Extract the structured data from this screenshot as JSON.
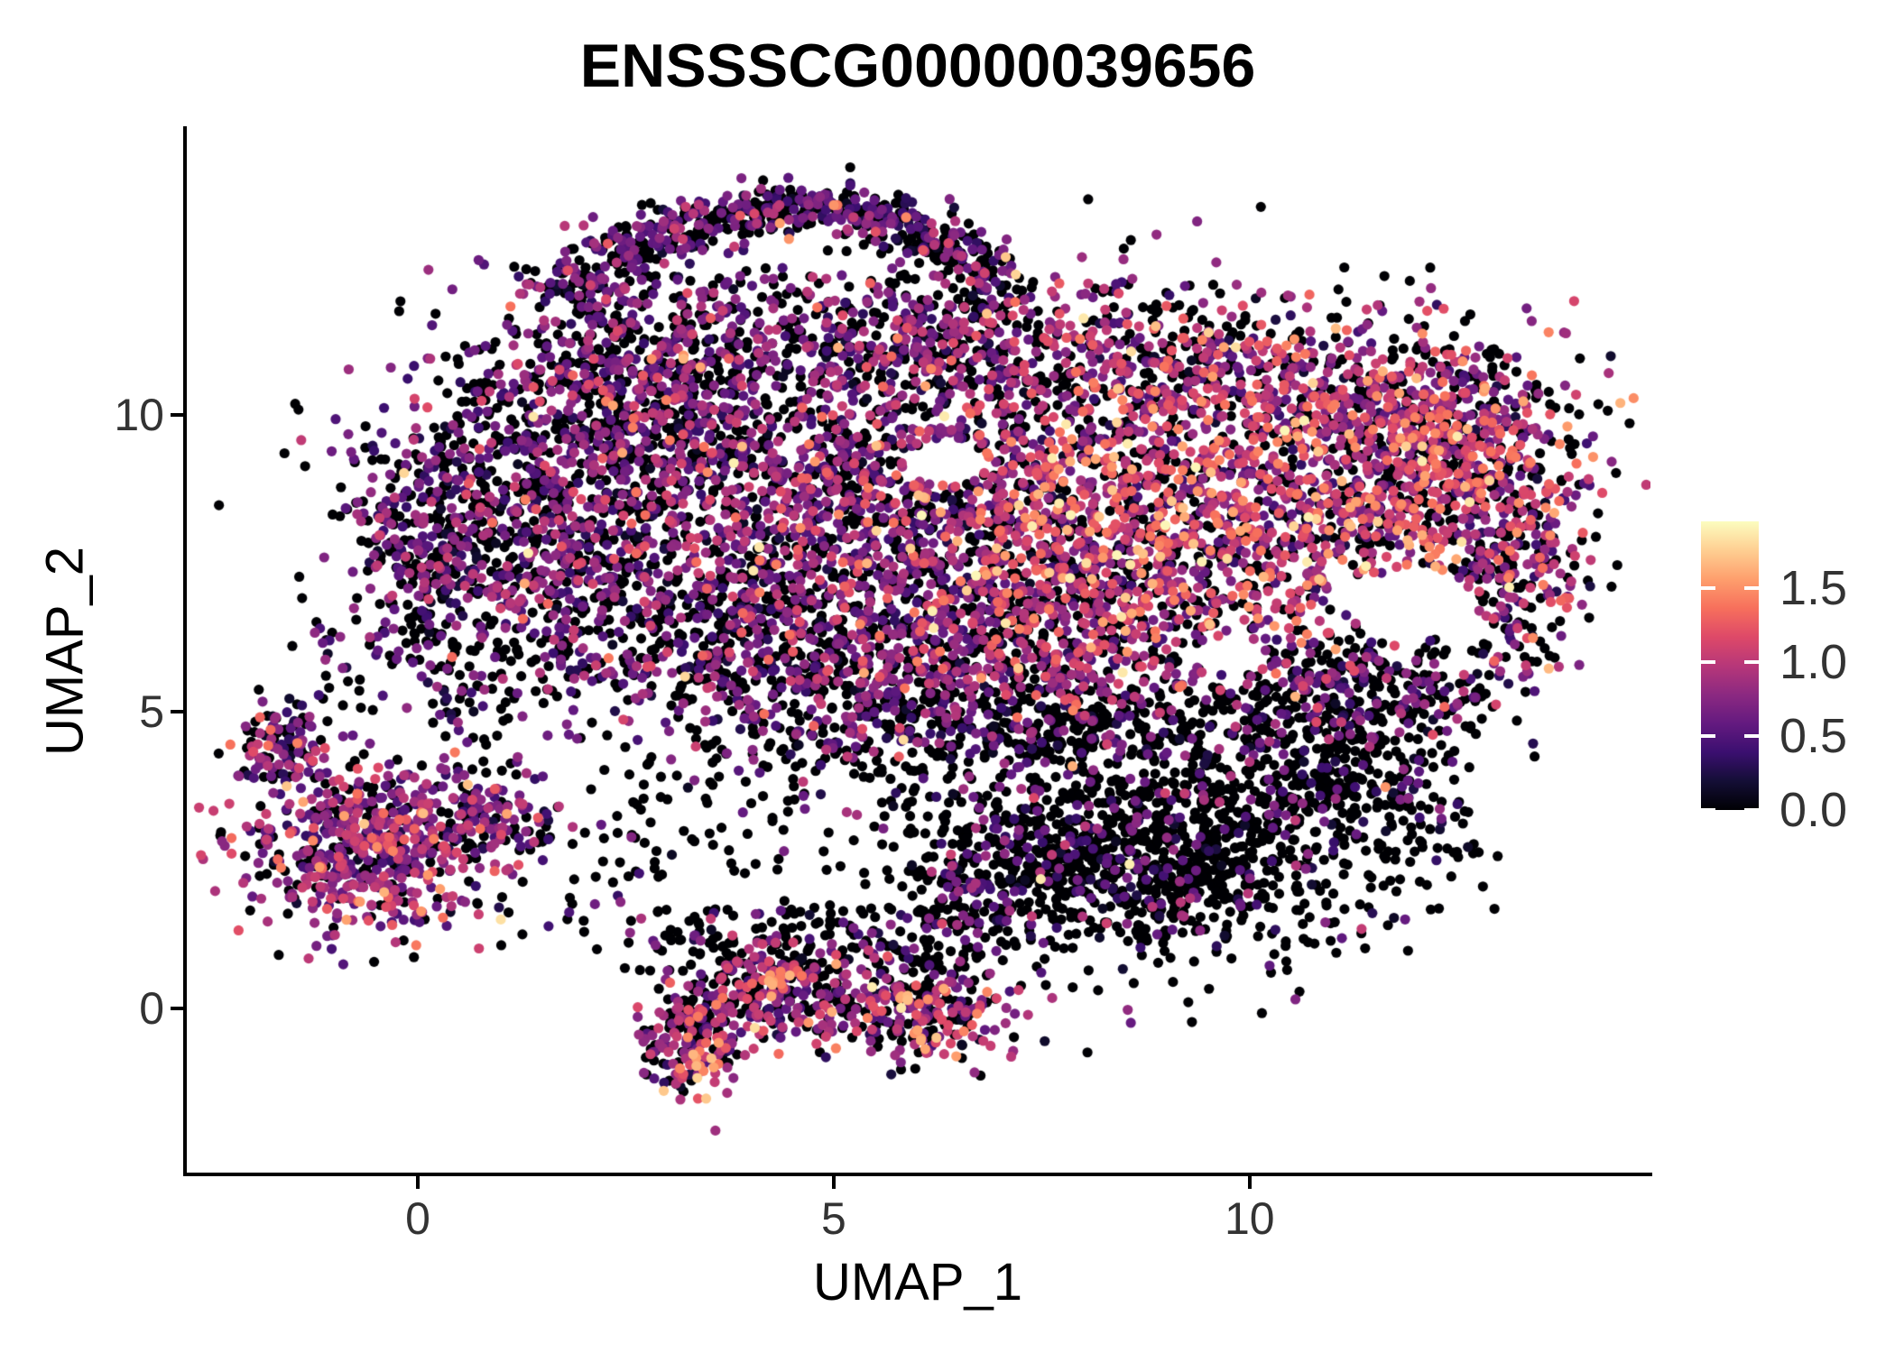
{
  "title": "ENSSSCG00000039656",
  "axes": {
    "x_label": "UMAP_1",
    "y_label": "UMAP_2",
    "x_ticks": [
      0,
      5,
      10
    ],
    "y_ticks": [
      0,
      5,
      10
    ],
    "x_range": [
      -2.8,
      14.82
    ],
    "y_range": [
      -2.8,
      14.83
    ]
  },
  "colorbar": {
    "tick_labels": [
      "1.5",
      "1.0",
      "0.5",
      "0.0"
    ],
    "tick_values": [
      1.5,
      1.0,
      0.5,
      0.0
    ],
    "min_value": 0.0,
    "max_value": 1.95,
    "colormap": "magma",
    "colormap_anchors": [
      [
        0.0,
        "#000004"
      ],
      [
        0.1,
        "#140e36"
      ],
      [
        0.2,
        "#3b0f70"
      ],
      [
        0.3,
        "#641a80"
      ],
      [
        0.4,
        "#8c2981"
      ],
      [
        0.5,
        "#b73779"
      ],
      [
        0.6,
        "#de4968"
      ],
      [
        0.7,
        "#f7705c"
      ],
      [
        0.8,
        "#fe9f6d"
      ],
      [
        0.9,
        "#fecf92"
      ],
      [
        1.0,
        "#fcfdbf"
      ]
    ]
  },
  "chart_data": {
    "type": "scatter",
    "title": "ENSSSCG00000039656",
    "xlabel": "UMAP_1",
    "ylabel": "UMAP_2",
    "xlim": [
      -2.8,
      14.82
    ],
    "ylim": [
      -2.8,
      14.83
    ],
    "grid": false,
    "legend_position": "right",
    "point_radius_px": 5.6,
    "zero_color": "#000004",
    "color_scale": {
      "name": "magma",
      "domain": [
        0,
        1.95
      ]
    },
    "n_points_approx": 12900,
    "seed": 20240507,
    "holes": [
      {
        "cx": 6.35,
        "cy": 9.2,
        "rx": 0.5,
        "ry": 0.38
      },
      {
        "cx": 11.95,
        "cy": 6.8,
        "rx": 0.78,
        "ry": 0.58
      },
      {
        "cx": 9.75,
        "cy": 5.95,
        "rx": 0.45,
        "ry": 0.33
      }
    ],
    "clusters": [
      {
        "name": "crescent-1",
        "n": 70,
        "cx": 1.85,
        "cy": 12.2,
        "sx": 0.28,
        "sy": 0.22,
        "zero_frac": 0.48,
        "v_mean": 0.62,
        "v_sd": 0.26,
        "hi_frac": 0.01
      },
      {
        "name": "crescent-2",
        "n": 85,
        "cx": 2.5,
        "cy": 12.75,
        "sx": 0.3,
        "sy": 0.22,
        "zero_frac": 0.48,
        "v_mean": 0.62,
        "v_sd": 0.26,
        "hi_frac": 0.01
      },
      {
        "name": "crescent-3",
        "n": 95,
        "cx": 3.2,
        "cy": 13.15,
        "sx": 0.3,
        "sy": 0.2,
        "zero_frac": 0.48,
        "v_mean": 0.62,
        "v_sd": 0.26,
        "hi_frac": 0.01
      },
      {
        "name": "crescent-4",
        "n": 100,
        "cx": 4.05,
        "cy": 13.45,
        "sx": 0.32,
        "sy": 0.2,
        "zero_frac": 0.48,
        "v_mean": 0.62,
        "v_sd": 0.26,
        "hi_frac": 0.01
      },
      {
        "name": "crescent-5",
        "n": 95,
        "cx": 4.9,
        "cy": 13.5,
        "sx": 0.32,
        "sy": 0.2,
        "zero_frac": 0.48,
        "v_mean": 0.62,
        "v_sd": 0.26,
        "hi_frac": 0.01
      },
      {
        "name": "crescent-6",
        "n": 90,
        "cx": 5.65,
        "cy": 13.25,
        "sx": 0.3,
        "sy": 0.2,
        "zero_frac": 0.48,
        "v_mean": 0.62,
        "v_sd": 0.26,
        "hi_frac": 0.01
      },
      {
        "name": "crescent-7",
        "n": 80,
        "cx": 6.35,
        "cy": 12.85,
        "sx": 0.28,
        "sy": 0.2,
        "zero_frac": 0.48,
        "v_mean": 0.62,
        "v_sd": 0.26,
        "hi_frac": 0.01
      },
      {
        "name": "crescent-8",
        "n": 55,
        "cx": 6.85,
        "cy": 12.35,
        "sx": 0.22,
        "sy": 0.25,
        "zero_frac": 0.48,
        "v_mean": 0.62,
        "v_sd": 0.26,
        "hi_frac": 0.01
      },
      {
        "name": "sub-crescent-sparse",
        "shape": "uniform",
        "n": 170,
        "x0": 1.9,
        "x1": 7.1,
        "y0": 10.9,
        "y1": 12.35,
        "zero_frac": 0.55,
        "v_mean": 0.6,
        "v_sd": 0.25,
        "hi_frac": 0.01
      },
      {
        "name": "main-upper-left",
        "n": 500,
        "cx": 2.6,
        "cy": 10.6,
        "sx": 1.0,
        "sy": 0.8,
        "zero_frac": 0.45,
        "v_mean": 0.68,
        "v_sd": 0.28,
        "hi_frac": 0.015
      },
      {
        "name": "main-left-lobe",
        "n": 900,
        "cx": 1.35,
        "cy": 8.3,
        "sx": 1.05,
        "sy": 1.35,
        "zero_frac": 0.46,
        "v_mean": 0.66,
        "v_sd": 0.28,
        "hi_frac": 0.01
      },
      {
        "name": "main-left-spur",
        "n": 210,
        "cx": 0.05,
        "cy": 7.5,
        "sx": 0.42,
        "sy": 0.95,
        "zero_frac": 0.5,
        "v_mean": 0.6,
        "v_sd": 0.25,
        "hi_frac": 0.01
      },
      {
        "name": "main-center",
        "n": 1300,
        "cx": 4.8,
        "cy": 8.7,
        "sx": 1.5,
        "sy": 1.4,
        "zero_frac": 0.44,
        "v_mean": 0.7,
        "v_sd": 0.3,
        "hi_frac": 0.02
      },
      {
        "name": "main-center-low",
        "n": 550,
        "cx": 4.0,
        "cy": 6.15,
        "sx": 1.3,
        "sy": 0.85,
        "zero_frac": 0.5,
        "v_mean": 0.65,
        "v_sd": 0.28,
        "hi_frac": 0.01
      },
      {
        "name": "main-top-band",
        "n": 560,
        "cx": 6.8,
        "cy": 11.15,
        "sx": 1.7,
        "sy": 0.72,
        "zero_frac": 0.44,
        "v_mean": 0.7,
        "v_sd": 0.3,
        "hi_frac": 0.02
      },
      {
        "name": "main-right-bright",
        "n": 1500,
        "cx": 8.6,
        "cy": 8.1,
        "sx": 1.65,
        "sy": 1.35,
        "zero_frac": 0.3,
        "v_mean": 0.95,
        "v_sd": 0.35,
        "hi_frac": 0.04
      },
      {
        "name": "main-upper-right",
        "n": 420,
        "cx": 10.2,
        "cy": 10.55,
        "sx": 1.15,
        "sy": 0.65,
        "zero_frac": 0.36,
        "v_mean": 0.85,
        "v_sd": 0.33,
        "hi_frac": 0.03
      },
      {
        "name": "main-upper-right-tip",
        "n": 300,
        "cx": 12.35,
        "cy": 10.1,
        "sx": 0.72,
        "sy": 0.62,
        "zero_frac": 0.34,
        "v_mean": 0.9,
        "v_sd": 0.33,
        "hi_frac": 0.03
      },
      {
        "name": "main-far-right",
        "n": 650,
        "cx": 11.7,
        "cy": 8.75,
        "sx": 1.05,
        "sy": 0.95,
        "zero_frac": 0.3,
        "v_mean": 0.95,
        "v_sd": 0.35,
        "hi_frac": 0.04
      },
      {
        "name": "main-right-edge",
        "n": 280,
        "cx": 13.15,
        "cy": 7.6,
        "sx": 0.45,
        "sy": 1.15,
        "zero_frac": 0.42,
        "v_mean": 0.8,
        "v_sd": 0.33,
        "hi_frac": 0.02
      },
      {
        "name": "main-right-low-edge",
        "n": 290,
        "cx": 11.3,
        "cy": 5.4,
        "sx": 1.05,
        "sy": 0.5,
        "zero_frac": 0.62,
        "v_mean": 0.7,
        "v_sd": 0.3,
        "hi_frac": 0.01
      },
      {
        "name": "main-center-right-low",
        "n": 520,
        "cx": 7.1,
        "cy": 6.2,
        "sx": 1.2,
        "sy": 0.8,
        "zero_frac": 0.42,
        "v_mean": 0.8,
        "v_sd": 0.3,
        "hi_frac": 0.02
      },
      {
        "name": "main-low-tail",
        "n": 220,
        "cx": 5.9,
        "cy": 4.9,
        "sx": 1.1,
        "sy": 0.5,
        "zero_frac": 0.58,
        "v_mean": 0.65,
        "v_sd": 0.28,
        "hi_frac": 0.01
      },
      {
        "name": "left-cluster-core",
        "n": 620,
        "cx": -0.55,
        "cy": 2.7,
        "sx": 0.8,
        "sy": 0.75,
        "zero_frac": 0.28,
        "v_mean": 0.82,
        "v_sd": 0.3,
        "hi_frac": 0.02
      },
      {
        "name": "left-cluster-spur",
        "n": 120,
        "cx": 0.9,
        "cy": 3.3,
        "sx": 0.45,
        "sy": 0.35,
        "zero_frac": 0.35,
        "v_mean": 0.75,
        "v_sd": 0.3,
        "hi_frac": 0.01
      },
      {
        "name": "left-cluster-tail",
        "n": 60,
        "cx": -1.6,
        "cy": 4.45,
        "sx": 0.28,
        "sy": 0.3,
        "zero_frac": 0.45,
        "v_mean": 0.7,
        "v_sd": 0.3,
        "hi_frac": 0.01
      },
      {
        "name": "left-cluster-tail-tip",
        "n": 25,
        "cx": -1.75,
        "cy": 4.75,
        "sx": 0.18,
        "sy": 0.25,
        "zero_frac": 0.45,
        "v_mean": 0.7,
        "v_sd": 0.28,
        "hi_frac": 0.01
      },
      {
        "name": "dark-bottom-right-core",
        "n": 1250,
        "cx": 8.8,
        "cy": 2.7,
        "sx": 1.35,
        "sy": 0.95,
        "zero_frac": 0.8,
        "v_mean": 0.55,
        "v_sd": 0.28,
        "hi_frac": 0.012
      },
      {
        "name": "dark-right-spur",
        "n": 150,
        "cx": 11.2,
        "cy": 3.9,
        "sx": 0.5,
        "sy": 0.45,
        "zero_frac": 0.85,
        "v_mean": 0.5,
        "v_sd": 0.25,
        "hi_frac": 0.01
      },
      {
        "name": "dark-top-scatter",
        "n": 180,
        "cx": 8.2,
        "cy": 4.6,
        "sx": 1.3,
        "sy": 0.4,
        "zero_frac": 0.75,
        "v_mean": 0.55,
        "v_sd": 0.25,
        "hi_frac": 0.01
      },
      {
        "name": "dark-left-edge",
        "n": 120,
        "cx": 6.7,
        "cy": 2.1,
        "sx": 0.4,
        "sy": 0.55,
        "zero_frac": 0.7,
        "v_mean": 0.6,
        "v_sd": 0.25,
        "hi_frac": 0.01
      },
      {
        "name": "bottom-mid-left",
        "n": 190,
        "cx": 3.25,
        "cy": -0.5,
        "sx": 0.32,
        "sy": 0.45,
        "zero_frac": 0.36,
        "v_mean": 0.8,
        "v_sd": 0.32,
        "hi_frac": 0.02
      },
      {
        "name": "bottom-mid-left-bright",
        "n": 7,
        "cx": 3.35,
        "cy": -0.95,
        "sx": 0.1,
        "sy": 0.1,
        "zero_frac": 0,
        "v_mean": 1.6,
        "v_sd": 0.12,
        "hi_frac": 0
      },
      {
        "name": "bottom-mid-center",
        "n": 230,
        "cx": 4.3,
        "cy": 0.3,
        "sx": 0.5,
        "sy": 0.45,
        "zero_frac": 0.4,
        "v_mean": 0.78,
        "v_sd": 0.3,
        "hi_frac": 0.02
      },
      {
        "name": "bottom-mid-center-bright",
        "n": 8,
        "cx": 4.27,
        "cy": 0.5,
        "sx": 0.09,
        "sy": 0.09,
        "zero_frac": 0,
        "v_mean": 1.6,
        "v_sd": 0.12,
        "hi_frac": 0
      },
      {
        "name": "bottom-mid-right",
        "n": 280,
        "cx": 5.95,
        "cy": -0.05,
        "sx": 0.62,
        "sy": 0.4,
        "zero_frac": 0.36,
        "v_mean": 0.85,
        "v_sd": 0.32,
        "hi_frac": 0.02
      },
      {
        "name": "bottom-mid-right-bright-a",
        "n": 5,
        "cx": 5.85,
        "cy": 0.12,
        "sx": 0.08,
        "sy": 0.08,
        "zero_frac": 0,
        "v_mean": 1.5,
        "v_sd": 0.15,
        "hi_frac": 0
      },
      {
        "name": "bottom-mid-right-bright-b",
        "n": 5,
        "cx": 6.05,
        "cy": -0.55,
        "sx": 0.08,
        "sy": 0.08,
        "zero_frac": 0,
        "v_mean": 1.55,
        "v_sd": 0.12,
        "hi_frac": 0
      },
      {
        "name": "bottom-connector",
        "shape": "uniform",
        "n": 190,
        "x0": 2.5,
        "x1": 6.8,
        "y0": 0.6,
        "y1": 1.7,
        "zero_frac": 0.8,
        "v_mean": 0.6,
        "v_sd": 0.25,
        "hi_frac": 0.005
      },
      {
        "name": "gap-left-mid",
        "shape": "uniform",
        "n": 55,
        "x0": 0.3,
        "x1": 2.4,
        "y0": 4.5,
        "y1": 6.2,
        "zero_frac": 0.55,
        "v_mean": 0.68,
        "v_sd": 0.28,
        "hi_frac": 0.01
      },
      {
        "name": "gap-center",
        "shape": "uniform",
        "n": 120,
        "x0": 2.0,
        "x1": 6.2,
        "y0": 2.2,
        "y1": 4.4,
        "zero_frac": 0.85,
        "v_mean": 0.6,
        "v_sd": 0.25,
        "hi_frac": 0.005
      },
      {
        "name": "gap-left-upper",
        "shape": "uniform",
        "n": 22,
        "x0": -1.6,
        "x1": 0.3,
        "y0": 5.0,
        "y1": 6.4,
        "zero_frac": 0.6,
        "v_mean": 0.6,
        "v_sd": 0.25,
        "hi_frac": 0
      },
      {
        "name": "gap-right",
        "shape": "uniform",
        "n": 55,
        "x0": 10.1,
        "x1": 12.9,
        "y0": 4.5,
        "y1": 5.6,
        "zero_frac": 0.8,
        "v_mean": 0.6,
        "v_sd": 0.25,
        "hi_frac": 0.005
      },
      {
        "name": "gap-right-lower",
        "shape": "uniform",
        "n": 40,
        "x0": 11.7,
        "x1": 12.7,
        "y0": 2.6,
        "y1": 4.4,
        "zero_frac": 0.85,
        "v_mean": 0.55,
        "v_sd": 0.25,
        "hi_frac": 0
      },
      {
        "name": "gap-mid-band",
        "shape": "uniform",
        "n": 70,
        "x0": 6.6,
        "x1": 10.2,
        "y0": 4.4,
        "y1": 5.4,
        "zero_frac": 0.8,
        "v_mean": 0.6,
        "v_sd": 0.25,
        "hi_frac": 0.005
      },
      {
        "name": "stragglers-left-bottom",
        "shape": "uniform",
        "n": 18,
        "x0": 1.0,
        "x1": 2.6,
        "y0": 0.6,
        "y1": 2.2,
        "zero_frac": 0.75,
        "v_mean": 0.6,
        "v_sd": 0.25,
        "hi_frac": 0
      },
      {
        "name": "left-tail-pieces",
        "shape": "uniform",
        "n": 20,
        "x0": -2.1,
        "x1": -1.3,
        "y0": 3.9,
        "y1": 4.5,
        "zero_frac": 0.4,
        "v_mean": 0.7,
        "v_sd": 0.28,
        "hi_frac": 0
      }
    ]
  }
}
